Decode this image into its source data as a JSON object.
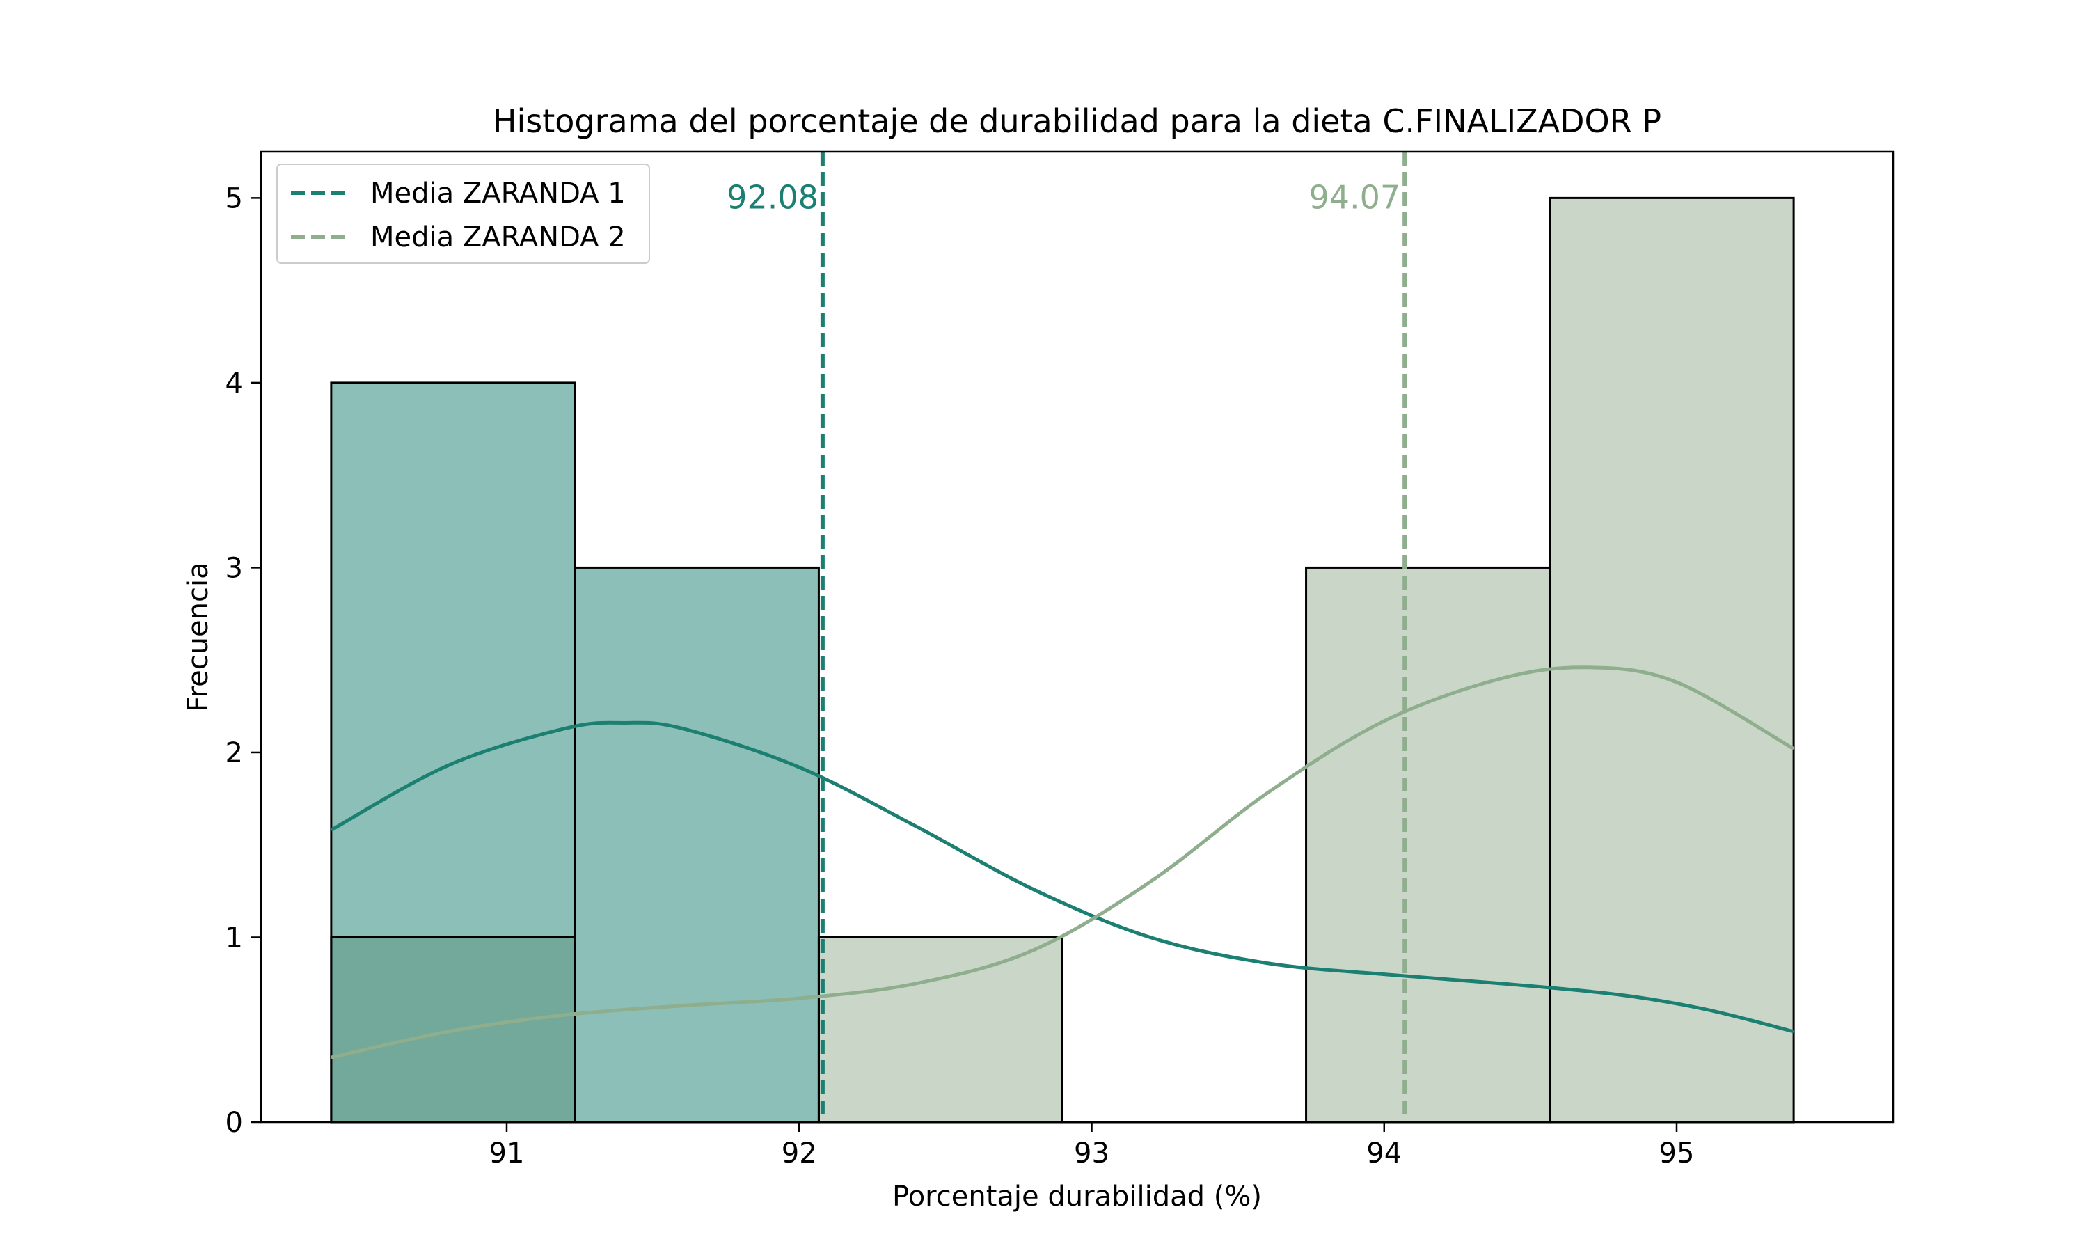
{
  "chart_data": {
    "type": "histogram",
    "title": "Histograma del porcentaje de durabilidad para la dieta C.FINALIZADOR P",
    "xlabel": "Porcentaje durabilidad (%)",
    "ylabel": "Frecuencia",
    "xlim": [
      90.16,
      95.74
    ],
    "ylim": [
      0,
      5.25
    ],
    "xticks": [
      91,
      92,
      93,
      94,
      95
    ],
    "yticks": [
      0,
      1,
      2,
      3,
      4,
      5
    ],
    "bin_edges": [
      90.4,
      91.233,
      92.067,
      92.9,
      93.733,
      94.567,
      95.4
    ],
    "grid": false,
    "legend_position": "upper-left",
    "series": [
      {
        "name": "ZARANDA 1",
        "color": "#1b7f72",
        "fill": "#8bbfb7",
        "counts": [
          4,
          3,
          0,
          0,
          0,
          0
        ],
        "mean": 92.08,
        "mean_label": "92.08",
        "legend_label": "Media ZARANDA 1",
        "kde": {
          "x": [
            90.4,
            90.8,
            91.2,
            91.4,
            91.6,
            92.0,
            92.4,
            92.8,
            93.2,
            93.6,
            94.0,
            94.4,
            94.8,
            95.1,
            95.4
          ],
          "y": [
            1.58,
            1.93,
            2.13,
            2.16,
            2.13,
            1.92,
            1.6,
            1.26,
            1.0,
            0.86,
            0.8,
            0.75,
            0.69,
            0.61,
            0.49
          ]
        }
      },
      {
        "name": "ZARANDA 2",
        "color": "#8fae8d",
        "fill": "#c9d6c8",
        "counts": [
          1,
          0,
          1,
          0,
          3,
          5
        ],
        "mean": 94.07,
        "mean_label": "94.07",
        "legend_label": "Media ZARANDA 2",
        "kde": {
          "x": [
            90.4,
            90.8,
            91.2,
            91.6,
            92.0,
            92.4,
            92.8,
            93.2,
            93.6,
            94.0,
            94.4,
            94.7,
            95.0,
            95.4
          ],
          "y": [
            0.35,
            0.49,
            0.58,
            0.63,
            0.67,
            0.75,
            0.93,
            1.3,
            1.78,
            2.17,
            2.4,
            2.46,
            2.38,
            2.02
          ]
        }
      }
    ],
    "overlap_fill": "#72a99b"
  }
}
